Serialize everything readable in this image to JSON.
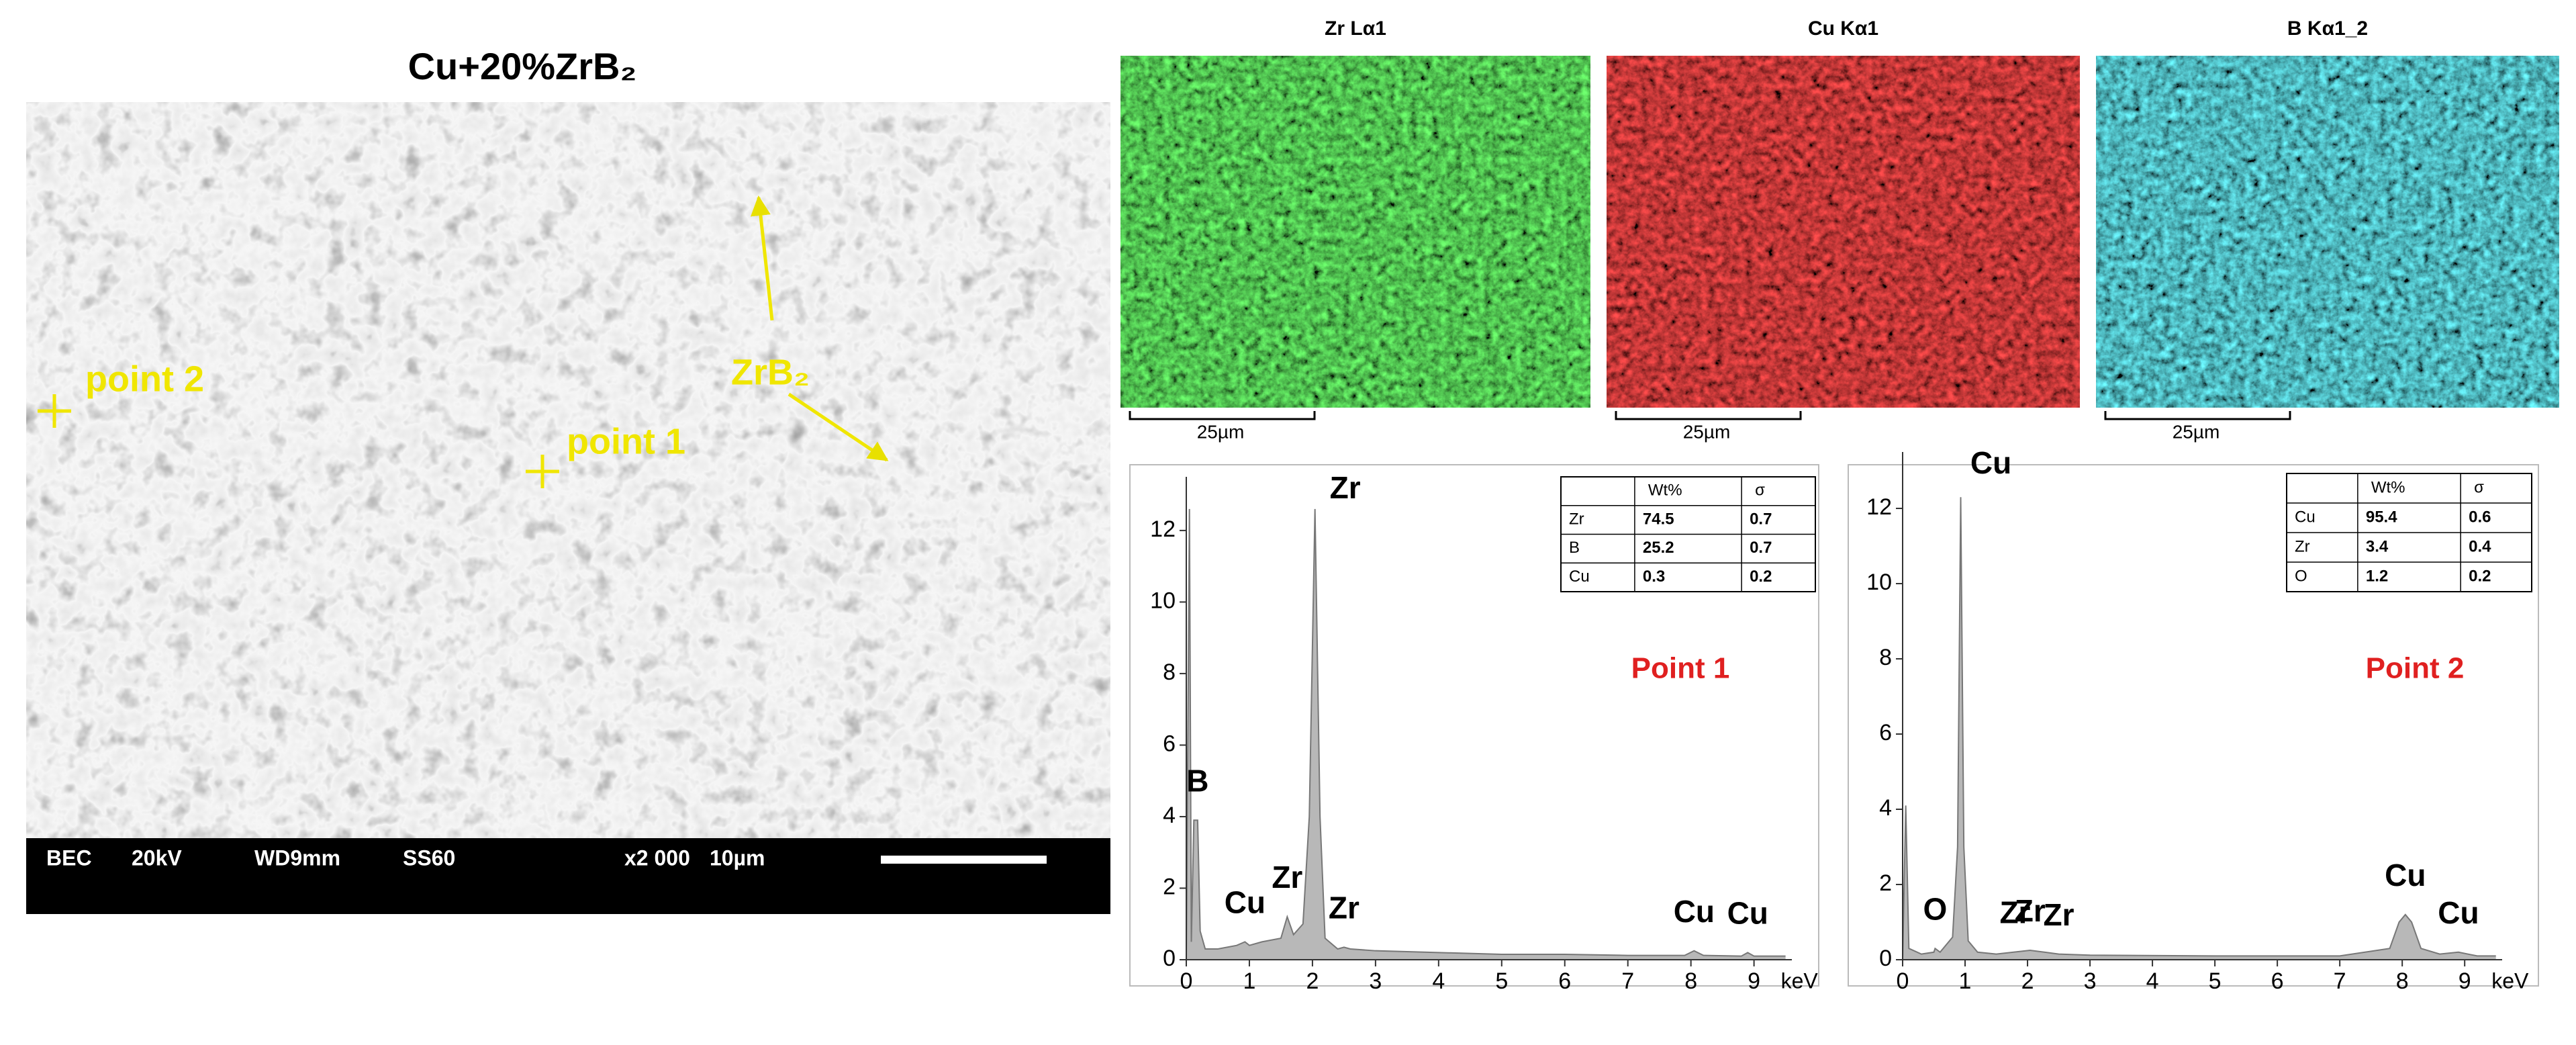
{
  "sem": {
    "title": "Cu+20%ZrB₂",
    "annotations": [
      "point 2",
      "point 1",
      "ZrB₂"
    ],
    "info_bar": [
      "BEC",
      "20kV",
      "WD9mm",
      "SS60",
      "x2 000",
      "10µm"
    ]
  },
  "maps": [
    {
      "title": "Zr Lα1",
      "color": "#22e022",
      "scale": "25µm"
    },
    {
      "title": "Cu Kα1",
      "color": "#e01010",
      "scale": "25µm"
    },
    {
      "title": "B Kα1_2",
      "color": "#20c8d8",
      "scale": "25µm"
    }
  ],
  "chart_data": [
    {
      "type": "area",
      "label": "Point 1",
      "x": [
        0,
        0.05,
        0.08,
        0.12,
        0.18,
        0.22,
        0.3,
        0.5,
        0.8,
        0.93,
        1.0,
        1.2,
        1.5,
        1.6,
        1.7,
        1.85,
        1.95,
        2.04,
        2.12,
        2.2,
        2.4,
        2.5,
        2.6,
        3,
        4,
        5,
        6,
        7,
        7.9,
        8.05,
        8.2,
        8.8,
        8.9,
        9,
        9.5
      ],
      "values": [
        0,
        12.6,
        0.5,
        3.9,
        3.9,
        0.8,
        0.3,
        0.3,
        0.4,
        0.5,
        0.4,
        0.5,
        0.6,
        1.2,
        0.7,
        1.0,
        4,
        12.6,
        4,
        0.6,
        0.3,
        0.35,
        0.3,
        0.25,
        0.2,
        0.15,
        0.15,
        0.12,
        0.12,
        0.25,
        0.12,
        0.1,
        0.2,
        0.1,
        0.1
      ],
      "color": "#b8b8b8",
      "xlim": [
        0,
        9.6
      ],
      "ylim": [
        0,
        13.5
      ],
      "xticks": [
        0,
        1,
        2,
        3,
        4,
        5,
        6,
        7,
        8,
        9
      ],
      "yticks": [
        0,
        2,
        4,
        6,
        8,
        10,
        12
      ],
      "x_label": "keV",
      "peak_labels": [
        {
          "label": "B",
          "x": 0.18
        },
        {
          "label": "Cu",
          "x": 0.93
        },
        {
          "label": "Zr",
          "x": 1.6
        },
        {
          "label": "Zr",
          "x": 2.04
        },
        {
          "label": "Zr",
          "x": 2.5
        },
        {
          "label": "Cu",
          "x": 8.05
        },
        {
          "label": "Cu",
          "x": 8.9
        }
      ],
      "table": {
        "header": [
          "Wt%",
          "σ"
        ],
        "rows": [
          [
            "Zr",
            74.5,
            0.7
          ],
          [
            "B",
            25.2,
            0.7
          ],
          [
            "Cu",
            0.3,
            0.2
          ]
        ]
      }
    },
    {
      "type": "area",
      "label": "Point 2",
      "x": [
        0,
        0.05,
        0.1,
        0.3,
        0.5,
        0.52,
        0.6,
        0.8,
        0.88,
        0.93,
        0.98,
        1.05,
        1.2,
        1.5,
        2.04,
        2.5,
        3,
        5,
        7,
        7.8,
        7.95,
        8.05,
        8.15,
        8.3,
        8.6,
        8.9,
        9.2,
        9.5
      ],
      "values": [
        0,
        4.1,
        0.3,
        0.15,
        0.2,
        0.3,
        0.2,
        0.6,
        3,
        12.3,
        3,
        0.5,
        0.2,
        0.15,
        0.25,
        0.15,
        0.12,
        0.1,
        0.1,
        0.3,
        1.0,
        1.2,
        1.0,
        0.3,
        0.15,
        0.2,
        0.1,
        0.1
      ],
      "color": "#b8b8b8",
      "xlim": [
        0,
        9.6
      ],
      "ylim": [
        0,
        13.5
      ],
      "xticks": [
        0,
        1,
        2,
        3,
        4,
        5,
        6,
        7,
        8,
        9
      ],
      "yticks": [
        0,
        2,
        4,
        6,
        8,
        10,
        12
      ],
      "x_label": "keV",
      "peak_labels": [
        {
          "label": "O",
          "x": 0.52
        },
        {
          "label": "Cu",
          "x": 0.93
        },
        {
          "label": "Zr",
          "x": 1.8
        },
        {
          "label": "Zr",
          "x": 2.04
        },
        {
          "label": "Zr",
          "x": 2.5
        },
        {
          "label": "Cu",
          "x": 8.05
        },
        {
          "label": "Cu",
          "x": 8.9
        }
      ],
      "table": {
        "header": [
          "Wt%",
          "σ"
        ],
        "rows": [
          [
            "Cu",
            95.4,
            0.6
          ],
          [
            "Zr",
            3.4,
            0.4
          ],
          [
            "O",
            1.2,
            0.2
          ]
        ]
      }
    }
  ]
}
